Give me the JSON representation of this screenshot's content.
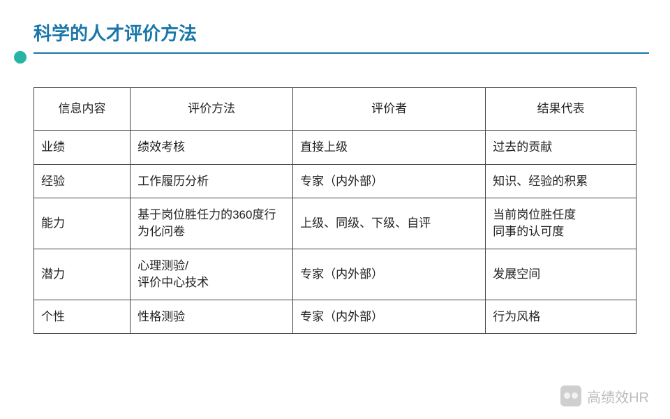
{
  "title": "科学的人才评价方法",
  "colors": {
    "title_color": "#1976a8",
    "accent_circle": "#27b4a6",
    "border": "#444444",
    "text": "#222222",
    "background": "#ffffff"
  },
  "table": {
    "columns": [
      "信息内容",
      "评价方法",
      "评价者",
      "结果代表"
    ],
    "column_widths_pct": [
      16,
      27,
      32,
      25
    ],
    "rows": [
      [
        "业绩",
        "绩效考核",
        "直接上级",
        "过去的贡献"
      ],
      [
        "经验",
        "工作履历分析",
        "专家（内外部）",
        "知识、经验的积累"
      ],
      [
        "能力",
        "基于岗位胜任力的360度行为化问卷",
        "上级、同级、下级、自评",
        "当前岗位胜任度\n同事的认可度"
      ],
      [
        "潜力",
        "心理测验/\n评价中心技术",
        "专家（内外部）",
        "发展空间"
      ],
      [
        "个性",
        "性格测验",
        "专家（内外部）",
        "行为风格"
      ]
    ]
  },
  "watermark": "高绩效HR"
}
